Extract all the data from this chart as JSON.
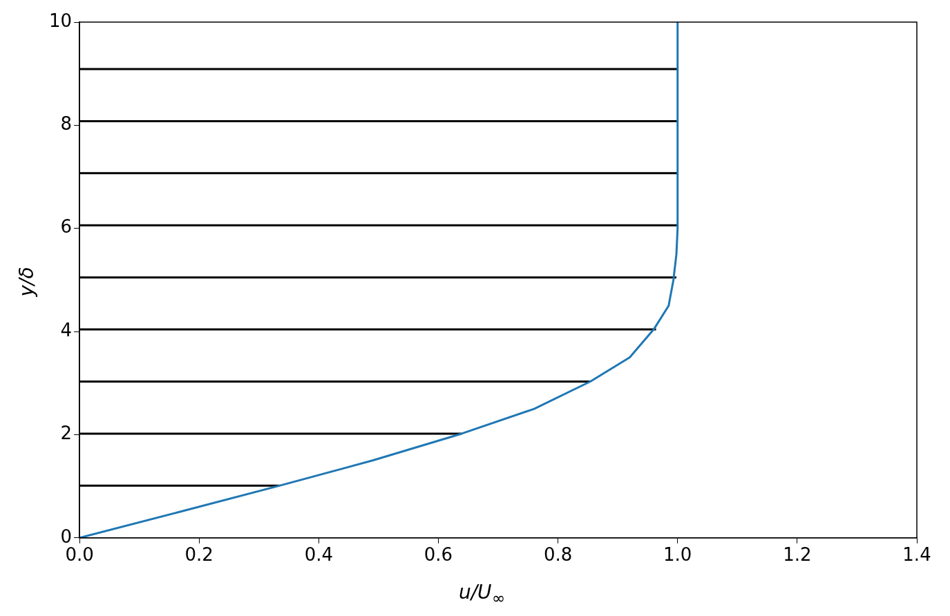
{
  "chart_data": {
    "type": "line",
    "xlabel": "u/U$_{∞}$",
    "ylabel": "y/δ",
    "xlim": [
      0,
      1.4
    ],
    "ylim": [
      0,
      10
    ],
    "xticks": [
      {
        "value": 0,
        "label": "0.0"
      },
      {
        "value": 0.2,
        "label": "0.2"
      },
      {
        "value": 0.4,
        "label": "0.4"
      },
      {
        "value": 0.6,
        "label": "0.6"
      },
      {
        "value": 0.8,
        "label": "0.8"
      },
      {
        "value": 1,
        "label": "1.0"
      },
      {
        "value": 1.2,
        "label": "1.2"
      },
      {
        "value": 1.4,
        "label": "1.4"
      }
    ],
    "yticks": [
      0,
      2,
      4,
      6,
      8,
      10
    ],
    "grid": false,
    "legend": false,
    "marker": "none",
    "line_style": "solid",
    "series": [
      {
        "color": "#1f77b4",
        "x": [
          0,
          0.166,
          0.334,
          0.49,
          0.639,
          0.76,
          0.854,
          0.92,
          0.96,
          0.985,
          0.993,
          0.998,
          1.0,
          1.0
        ],
        "values": [
          0,
          0.5,
          1.01,
          1.5,
          2.02,
          2.5,
          3.03,
          3.5,
          4.04,
          4.5,
          5.0,
          5.5,
          6.0,
          10
        ]
      },
      {
        "color": "#000000",
        "x": [
          0,
          0.334
        ],
        "values": [
          1.01,
          1.01
        ]
      },
      {
        "color": "#000000",
        "x": [
          0,
          0.639
        ],
        "values": [
          2.02,
          2.02
        ]
      },
      {
        "color": "#000000",
        "x": [
          0,
          0.854
        ],
        "values": [
          3.03,
          3.03
        ]
      },
      {
        "color": "#000000",
        "x": [
          0,
          0.964
        ],
        "values": [
          4.04,
          4.04
        ]
      },
      {
        "color": "#000000",
        "x": [
          0,
          0.998
        ],
        "values": [
          5.05,
          5.05
        ]
      },
      {
        "color": "#000000",
        "x": [
          0,
          1.0
        ],
        "values": [
          6.06,
          6.06
        ]
      },
      {
        "color": "#000000",
        "x": [
          0,
          1.0
        ],
        "values": [
          7.07,
          7.07
        ]
      },
      {
        "color": "#000000",
        "x": [
          0,
          1.0
        ],
        "values": [
          8.08,
          8.08
        ]
      },
      {
        "color": "#000000",
        "x": [
          0,
          1.0
        ],
        "values": [
          9.09,
          9.09
        ]
      }
    ]
  }
}
